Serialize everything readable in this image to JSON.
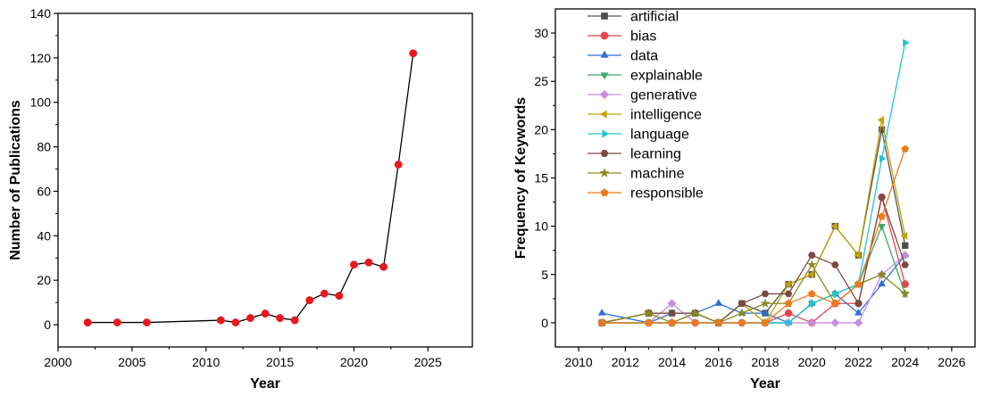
{
  "chart_data": [
    {
      "type": "line",
      "xlabel": "Year",
      "ylabel": "Number of Publications",
      "xlim": [
        2000,
        2028
      ],
      "ylim": [
        -10,
        140
      ],
      "xticks": [
        2000,
        2005,
        2010,
        2015,
        2020,
        2025
      ],
      "yticks": [
        0,
        20,
        40,
        60,
        80,
        100,
        120,
        140
      ],
      "series": [
        {
          "color": "#e8181e",
          "line_color": "#000000",
          "marker": "circle",
          "x": [
            2002,
            2004,
            2006,
            2011,
            2012,
            2013,
            2014,
            2015,
            2016,
            2017,
            2018,
            2019,
            2020,
            2021,
            2022,
            2023,
            2024
          ],
          "values": [
            1,
            1,
            1,
            2,
            1,
            3,
            5,
            3,
            2,
            11,
            14,
            13,
            27,
            28,
            26,
            72,
            122
          ]
        }
      ]
    },
    {
      "type": "line",
      "xlabel": "Year",
      "ylabel": "Frequency of Keywords",
      "xlim": [
        2009,
        2027
      ],
      "ylim": [
        -2.5,
        32.5
      ],
      "xticks": [
        2010,
        2012,
        2014,
        2016,
        2018,
        2020,
        2022,
        2024,
        2026
      ],
      "yticks": [
        0,
        5,
        10,
        15,
        20,
        25,
        30
      ],
      "legend": "top-left",
      "series": [
        {
          "name": "artificial",
          "color": "#505050",
          "marker": "square",
          "x": [
            2011,
            2013,
            2014,
            2015,
            2016,
            2017,
            2018,
            2019,
            2020,
            2021,
            2022,
            2023,
            2024
          ],
          "values": [
            0,
            1,
            1,
            1,
            0,
            2,
            1,
            4,
            5,
            10,
            7,
            20,
            8
          ]
        },
        {
          "name": "bias",
          "color": "#e8434a",
          "marker": "circle",
          "x": [
            2011,
            2013,
            2014,
            2015,
            2016,
            2017,
            2018,
            2019,
            2020,
            2021,
            2022,
            2023,
            2024
          ],
          "values": [
            0,
            0,
            0,
            0,
            0,
            0,
            0,
            1,
            0,
            2,
            2,
            13,
            4
          ]
        },
        {
          "name": "data",
          "color": "#2a6fd6",
          "marker": "triangle-up",
          "x": [
            2011,
            2013,
            2014,
            2015,
            2016,
            2017,
            2018,
            2019,
            2020,
            2021,
            2022,
            2023,
            2024
          ],
          "values": [
            1,
            0,
            1,
            1,
            2,
            1,
            1,
            0,
            2,
            3,
            1,
            4,
            7
          ]
        },
        {
          "name": "explainable",
          "color": "#3aaa6a",
          "marker": "triangle-down",
          "x": [
            2011,
            2013,
            2014,
            2015,
            2016,
            2017,
            2018,
            2019,
            2020,
            2021,
            2022,
            2023,
            2024
          ],
          "values": [
            0,
            0,
            0,
            0,
            0,
            0,
            0,
            0,
            2,
            3,
            4,
            10,
            3
          ]
        },
        {
          "name": "generative",
          "color": "#c58de0",
          "marker": "diamond",
          "x": [
            2011,
            2013,
            2014,
            2015,
            2016,
            2017,
            2018,
            2019,
            2020,
            2021,
            2022,
            2023,
            2024
          ],
          "values": [
            0,
            0,
            2,
            0,
            0,
            0,
            0,
            0,
            0,
            0,
            0,
            5,
            7
          ]
        },
        {
          "name": "intelligence",
          "color": "#c8a000",
          "marker": "triangle-left",
          "x": [
            2011,
            2013,
            2014,
            2015,
            2016,
            2017,
            2018,
            2019,
            2020,
            2021,
            2022,
            2023,
            2024
          ],
          "values": [
            0,
            0,
            0,
            1,
            0,
            2,
            0,
            4,
            5,
            10,
            7,
            21,
            9
          ]
        },
        {
          "name": "language",
          "color": "#22c4d4",
          "marker": "triangle-right",
          "x": [
            2011,
            2013,
            2014,
            2015,
            2016,
            2017,
            2018,
            2019,
            2020,
            2021,
            2022,
            2023,
            2024
          ],
          "values": [
            0,
            0,
            0,
            0,
            0,
            0,
            0,
            0,
            2,
            3,
            4,
            17,
            29
          ]
        },
        {
          "name": "learning",
          "color": "#7a4a42",
          "marker": "hexagon",
          "x": [
            2011,
            2013,
            2014,
            2015,
            2016,
            2017,
            2018,
            2019,
            2020,
            2021,
            2022,
            2023,
            2024
          ],
          "values": [
            0,
            1,
            1,
            1,
            0,
            2,
            3,
            3,
            7,
            6,
            2,
            13,
            6
          ]
        },
        {
          "name": "machine",
          "color": "#8a8a20",
          "marker": "star",
          "x": [
            2011,
            2013,
            2014,
            2015,
            2016,
            2017,
            2018,
            2019,
            2020,
            2021,
            2022,
            2023,
            2024
          ],
          "values": [
            0,
            1,
            0,
            1,
            0,
            1,
            2,
            2,
            6,
            2,
            4,
            5,
            3
          ]
        },
        {
          "name": "responsible",
          "color": "#f07a1a",
          "marker": "pentagon",
          "x": [
            2011,
            2013,
            2014,
            2015,
            2016,
            2017,
            2018,
            2019,
            2020,
            2021,
            2022,
            2023,
            2024
          ],
          "values": [
            0,
            0,
            0,
            0,
            0,
            0,
            0,
            2,
            3,
            2,
            4,
            11,
            18
          ]
        }
      ]
    }
  ]
}
